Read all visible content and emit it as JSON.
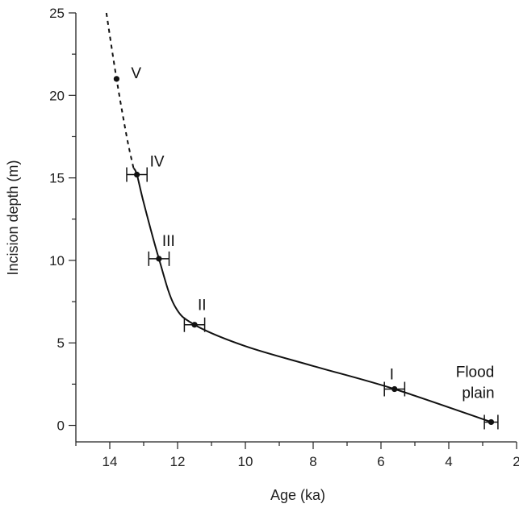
{
  "chart_data": {
    "type": "line",
    "xlabel": "Age (ka)",
    "ylabel": "Incision depth (m)",
    "xlim": [
      15,
      2
    ],
    "ylim": [
      -1,
      25
    ],
    "x_reversed": true,
    "x_ticks": [
      "14",
      "12",
      "10",
      "8",
      "6",
      "4",
      "2"
    ],
    "y_ticks": [
      "0",
      "5",
      "10",
      "15",
      "20",
      "25"
    ],
    "grid": false,
    "colors": {
      "line": "#111111",
      "axis": "#222222"
    },
    "points": [
      {
        "label": "V",
        "x": 13.8,
        "y": 21.0,
        "error": null
      },
      {
        "label": "IV",
        "x": 13.2,
        "y": 15.2,
        "error": 0.3
      },
      {
        "label": "III",
        "x": 12.55,
        "y": 10.1,
        "error": 0.3
      },
      {
        "label": "II",
        "x": 11.5,
        "y": 6.1,
        "error": 0.3
      },
      {
        "label": "I",
        "x": 5.6,
        "y": 2.2,
        "error": 0.3
      },
      {
        "label": "Flood plain",
        "x": 2.75,
        "y": 0.2,
        "error": 0.2
      }
    ],
    "series": [
      {
        "style": "dashed",
        "x": [
          14.1,
          13.8,
          13.5,
          13.3
        ],
        "y": [
          25.0,
          21.0,
          17.5,
          15.6
        ]
      },
      {
        "style": "solid",
        "x": [
          13.3,
          13.2,
          13.0,
          12.55,
          12.1,
          11.5,
          10.0,
          8.0,
          5.6,
          2.75
        ],
        "y": [
          15.6,
          15.2,
          13.5,
          10.1,
          7.3,
          6.1,
          4.8,
          3.6,
          2.2,
          0.2
        ]
      }
    ]
  }
}
